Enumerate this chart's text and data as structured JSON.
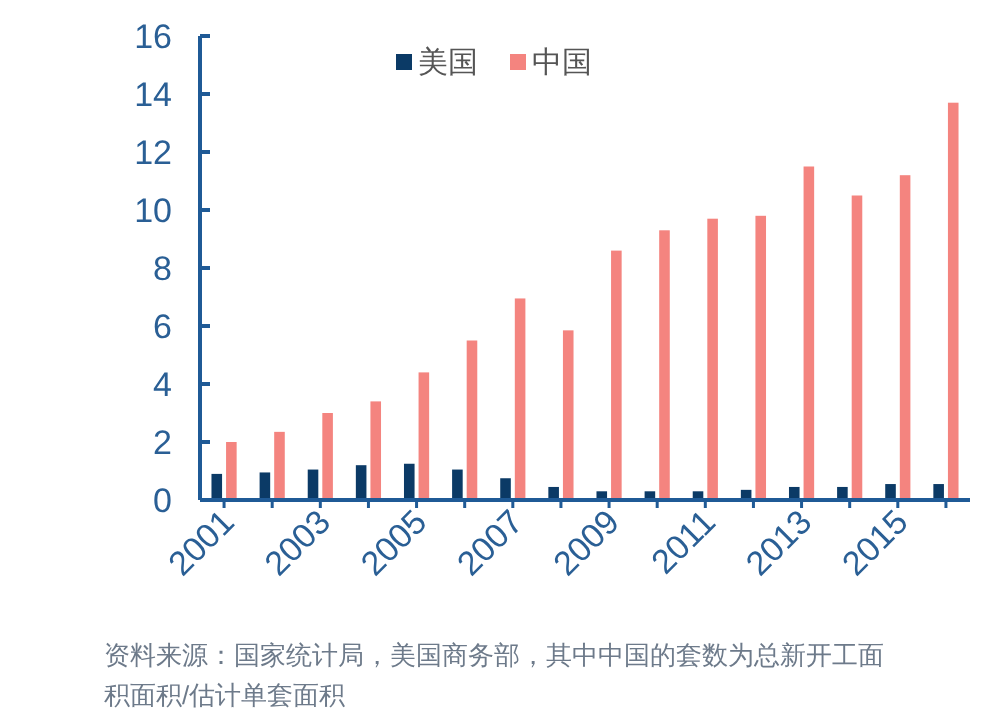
{
  "chart_data": {
    "type": "bar",
    "categories": [
      "2001",
      null,
      "2003",
      null,
      "2005",
      null,
      "2007",
      null,
      "2009",
      null,
      "2011",
      null,
      "2013",
      null,
      "2015",
      null
    ],
    "series": [
      {
        "name": "美国",
        "color": "#0b3a66",
        "values": [
          0.9,
          0.95,
          1.05,
          1.2,
          1.25,
          1.05,
          0.75,
          0.45,
          0.3,
          0.3,
          0.3,
          0.35,
          0.45,
          0.45,
          0.55,
          0.55
        ]
      },
      {
        "name": "中国",
        "color": "#f4847f",
        "values": [
          2.0,
          2.35,
          3.0,
          3.4,
          4.4,
          5.5,
          6.95,
          5.85,
          8.6,
          9.3,
          9.7,
          9.8,
          11.5,
          10.5,
          11.2,
          13.7
        ]
      }
    ],
    "ylim": [
      0,
      16
    ],
    "yticks": [
      0,
      2,
      4,
      6,
      8,
      10,
      12,
      14,
      16
    ],
    "grid": false,
    "legend": "top",
    "annotations": [
      "资料来源：国家统计局，美国商务部，其中中国的套数为总新开工面积面积/估计单套面积"
    ]
  }
}
